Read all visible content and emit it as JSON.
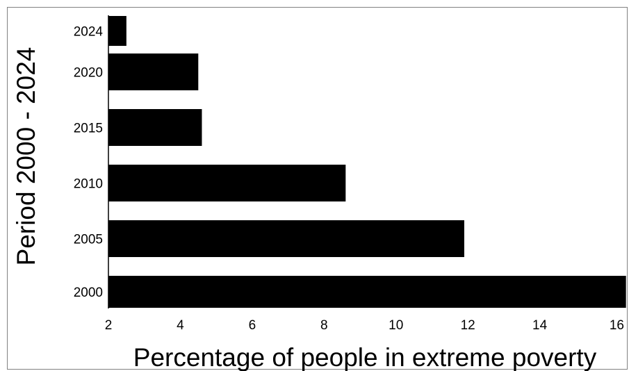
{
  "chart_data": {
    "type": "bar",
    "orientation": "horizontal",
    "categories": [
      "2000",
      "2005",
      "2010",
      "2015",
      "2020",
      "2024"
    ],
    "values": [
      16.4,
      11.9,
      8.6,
      4.6,
      4.5,
      2.5
    ],
    "xlabel": "Percentage of people in extreme poverty",
    "ylabel": "Period 2000 - 2024",
    "xlim": [
      2,
      16
    ],
    "xticks": [
      2,
      4,
      6,
      8,
      10,
      12,
      14,
      16
    ],
    "bar_color": "#000000",
    "grid": false,
    "legend": "none"
  }
}
